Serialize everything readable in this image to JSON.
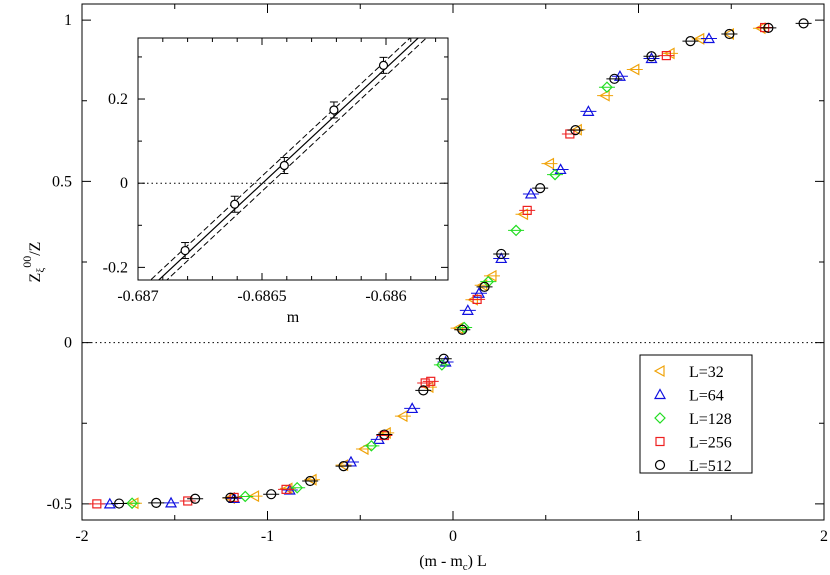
{
  "chart_data": [
    {
      "type": "scatter",
      "xlabel": "(m - m_c) L",
      "xlabel_parts": [
        "(m - m",
        "c",
        ") L"
      ],
      "ylabel": "Z_ξ^00/Z",
      "ylabel_parts": [
        "Z",
        "ξ",
        "00",
        "/Z"
      ],
      "xlim": [
        -2,
        2
      ],
      "ylim": [
        -0.55,
        1.05
      ],
      "xticks": [
        -2,
        -1,
        0,
        1,
        2
      ],
      "xtick_labels": [
        "-2",
        "-1",
        "0",
        "1",
        "2"
      ],
      "yticks": [
        -0.5,
        0,
        0.5,
        1
      ],
      "ytick_labels": [
        "-0.5",
        "0",
        "0.5",
        "1"
      ],
      "reference_line": {
        "y": 0,
        "style": "dotted"
      },
      "legend_position": "bottom-right",
      "grid": false,
      "series": [
        {
          "name": "L=32",
          "marker": "triangle-left",
          "color": "#f0a30a",
          "points": [
            [
              -1.72,
              -0.498
            ],
            [
              -1.2,
              -0.482
            ],
            [
              -1.07,
              -0.476
            ],
            [
              -0.89,
              -0.452
            ],
            [
              -0.76,
              -0.425
            ],
            [
              -0.59,
              -0.38
            ],
            [
              -0.48,
              -0.33
            ],
            [
              -0.36,
              -0.28
            ],
            [
              -0.27,
              -0.228
            ],
            [
              -0.13,
              -0.138
            ],
            [
              0.03,
              0.045
            ],
            [
              0.11,
              0.133
            ],
            [
              0.16,
              0.178
            ],
            [
              0.21,
              0.207
            ],
            [
              0.38,
              0.398
            ],
            [
              0.52,
              0.555
            ],
            [
              0.67,
              0.66
            ],
            [
              0.82,
              0.766
            ],
            [
              0.98,
              0.847
            ],
            [
              1.17,
              0.897
            ],
            [
              1.33,
              0.942
            ],
            [
              1.49,
              0.957
            ],
            [
              1.66,
              0.975
            ]
          ]
        },
        {
          "name": "L=64",
          "marker": "triangle-up",
          "color": "#1010e0",
          "points": [
            [
              -1.85,
              -0.5
            ],
            [
              -1.52,
              -0.497
            ],
            [
              -1.18,
              -0.483
            ],
            [
              -0.88,
              -0.457
            ],
            [
              -0.55,
              -0.37
            ],
            [
              -0.4,
              -0.3
            ],
            [
              -0.22,
              -0.204
            ],
            [
              -0.04,
              -0.06
            ],
            [
              0.08,
              0.1
            ],
            [
              0.14,
              0.153
            ],
            [
              0.26,
              0.261
            ],
            [
              0.42,
              0.461
            ],
            [
              0.58,
              0.537
            ],
            [
              0.73,
              0.717
            ],
            [
              0.9,
              0.826
            ],
            [
              1.07,
              0.881
            ],
            [
              1.38,
              0.943
            ]
          ]
        },
        {
          "name": "L=128",
          "marker": "diamond",
          "color": "#22dd22",
          "points": [
            [
              -1.73,
              -0.498
            ],
            [
              -1.12,
              -0.477
            ],
            [
              -0.84,
              -0.45
            ],
            [
              -0.44,
              -0.32
            ],
            [
              -0.06,
              -0.069
            ],
            [
              0.06,
              0.047
            ],
            [
              0.19,
              0.189
            ],
            [
              0.34,
              0.348
            ],
            [
              0.55,
              0.521
            ],
            [
              0.83,
              0.792
            ]
          ]
        },
        {
          "name": "L=256",
          "marker": "square",
          "color": "#ee2020",
          "points": [
            [
              -1.92,
              -0.5
            ],
            [
              -1.43,
              -0.491
            ],
            [
              -1.18,
              -0.48
            ],
            [
              -0.9,
              -0.455
            ],
            [
              -0.37,
              -0.288
            ],
            [
              -0.15,
              -0.125
            ],
            [
              -0.12,
              -0.12
            ],
            [
              0.13,
              0.134
            ],
            [
              0.4,
              0.41
            ],
            [
              0.63,
              0.647
            ],
            [
              1.15,
              0.89
            ],
            [
              1.68,
              0.977
            ]
          ]
        },
        {
          "name": "L=512",
          "marker": "circle",
          "color": "#000000",
          "points": [
            [
              -1.8,
              -0.499
            ],
            [
              -1.6,
              -0.497
            ],
            [
              -1.39,
              -0.484
            ],
            [
              -1.2,
              -0.481
            ],
            [
              -0.98,
              -0.47
            ],
            [
              -0.77,
              -0.429
            ],
            [
              -0.59,
              -0.383
            ],
            [
              -0.37,
              -0.285
            ],
            [
              -0.16,
              -0.148
            ],
            [
              -0.05,
              -0.05
            ],
            [
              0.05,
              0.04
            ],
            [
              0.17,
              0.173
            ],
            [
              0.26,
              0.275
            ],
            [
              0.47,
              0.479
            ],
            [
              0.66,
              0.659
            ],
            [
              0.87,
              0.818
            ],
            [
              1.07,
              0.888
            ],
            [
              1.28,
              0.935
            ],
            [
              1.49,
              0.957
            ],
            [
              1.7,
              0.976
            ],
            [
              1.89,
              0.99
            ]
          ]
        }
      ]
    },
    {
      "type": "line",
      "role": "inset",
      "xlabel": "m",
      "ylabel": "",
      "xlim": [
        -0.687,
        -0.68575
      ],
      "ylim": [
        -0.23,
        0.345
      ],
      "xticks": [
        -0.687,
        -0.6865,
        -0.686
      ],
      "xtick_labels": [
        "-0.687",
        "-0.6865",
        "-0.686"
      ],
      "yticks": [
        -0.2,
        0,
        0.2
      ],
      "ytick_labels": [
        "-0.2",
        "0",
        "0.2"
      ],
      "reference_line": {
        "y": 0,
        "style": "dotted"
      },
      "points": [
        [
          -0.68681,
          -0.16
        ],
        [
          -0.68661,
          -0.05
        ],
        [
          -0.68641,
          0.042
        ],
        [
          -0.68621,
          0.174
        ],
        [
          -0.68601,
          0.28
        ]
      ],
      "fit_line": {
        "x": [
          -0.687,
          -0.68575
        ],
        "y": [
          -0.276,
          0.411
        ]
      },
      "fit_band_offset": 0.018
    }
  ]
}
